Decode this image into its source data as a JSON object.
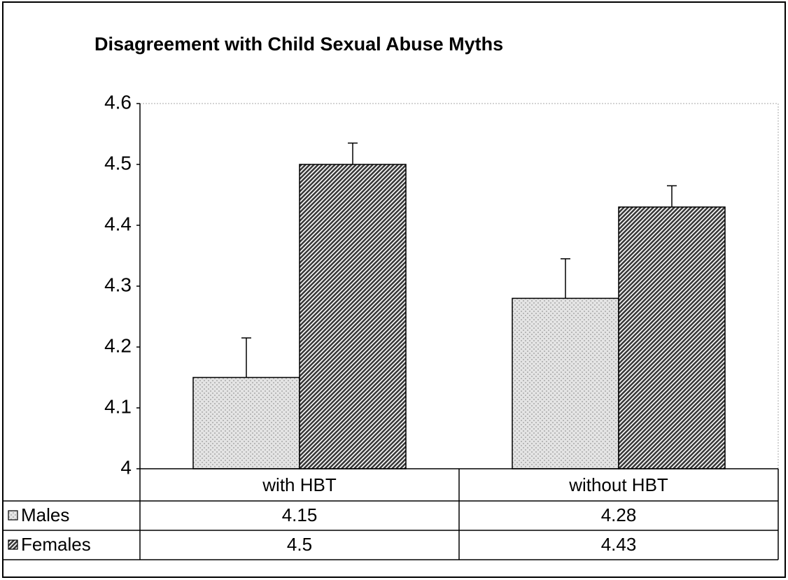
{
  "chart_data": {
    "type": "bar",
    "title": "Disagreement with Child Sexual Abuse Myths",
    "categories": [
      "with HBT",
      "without HBT"
    ],
    "series": [
      {
        "name": "Males",
        "color": "#b8b8b8",
        "values": [
          4.15,
          4.28
        ],
        "errors": [
          0.065,
          0.065
        ]
      },
      {
        "name": "Females",
        "color": "#3a3a3a",
        "values": [
          4.5,
          4.43
        ],
        "errors": [
          0.035,
          0.035
        ]
      }
    ],
    "ylim": [
      4,
      4.6
    ],
    "yticks": [
      4,
      4.1,
      4.2,
      4.3,
      4.4,
      4.5,
      4.6
    ],
    "grid": false,
    "data_table": true
  }
}
